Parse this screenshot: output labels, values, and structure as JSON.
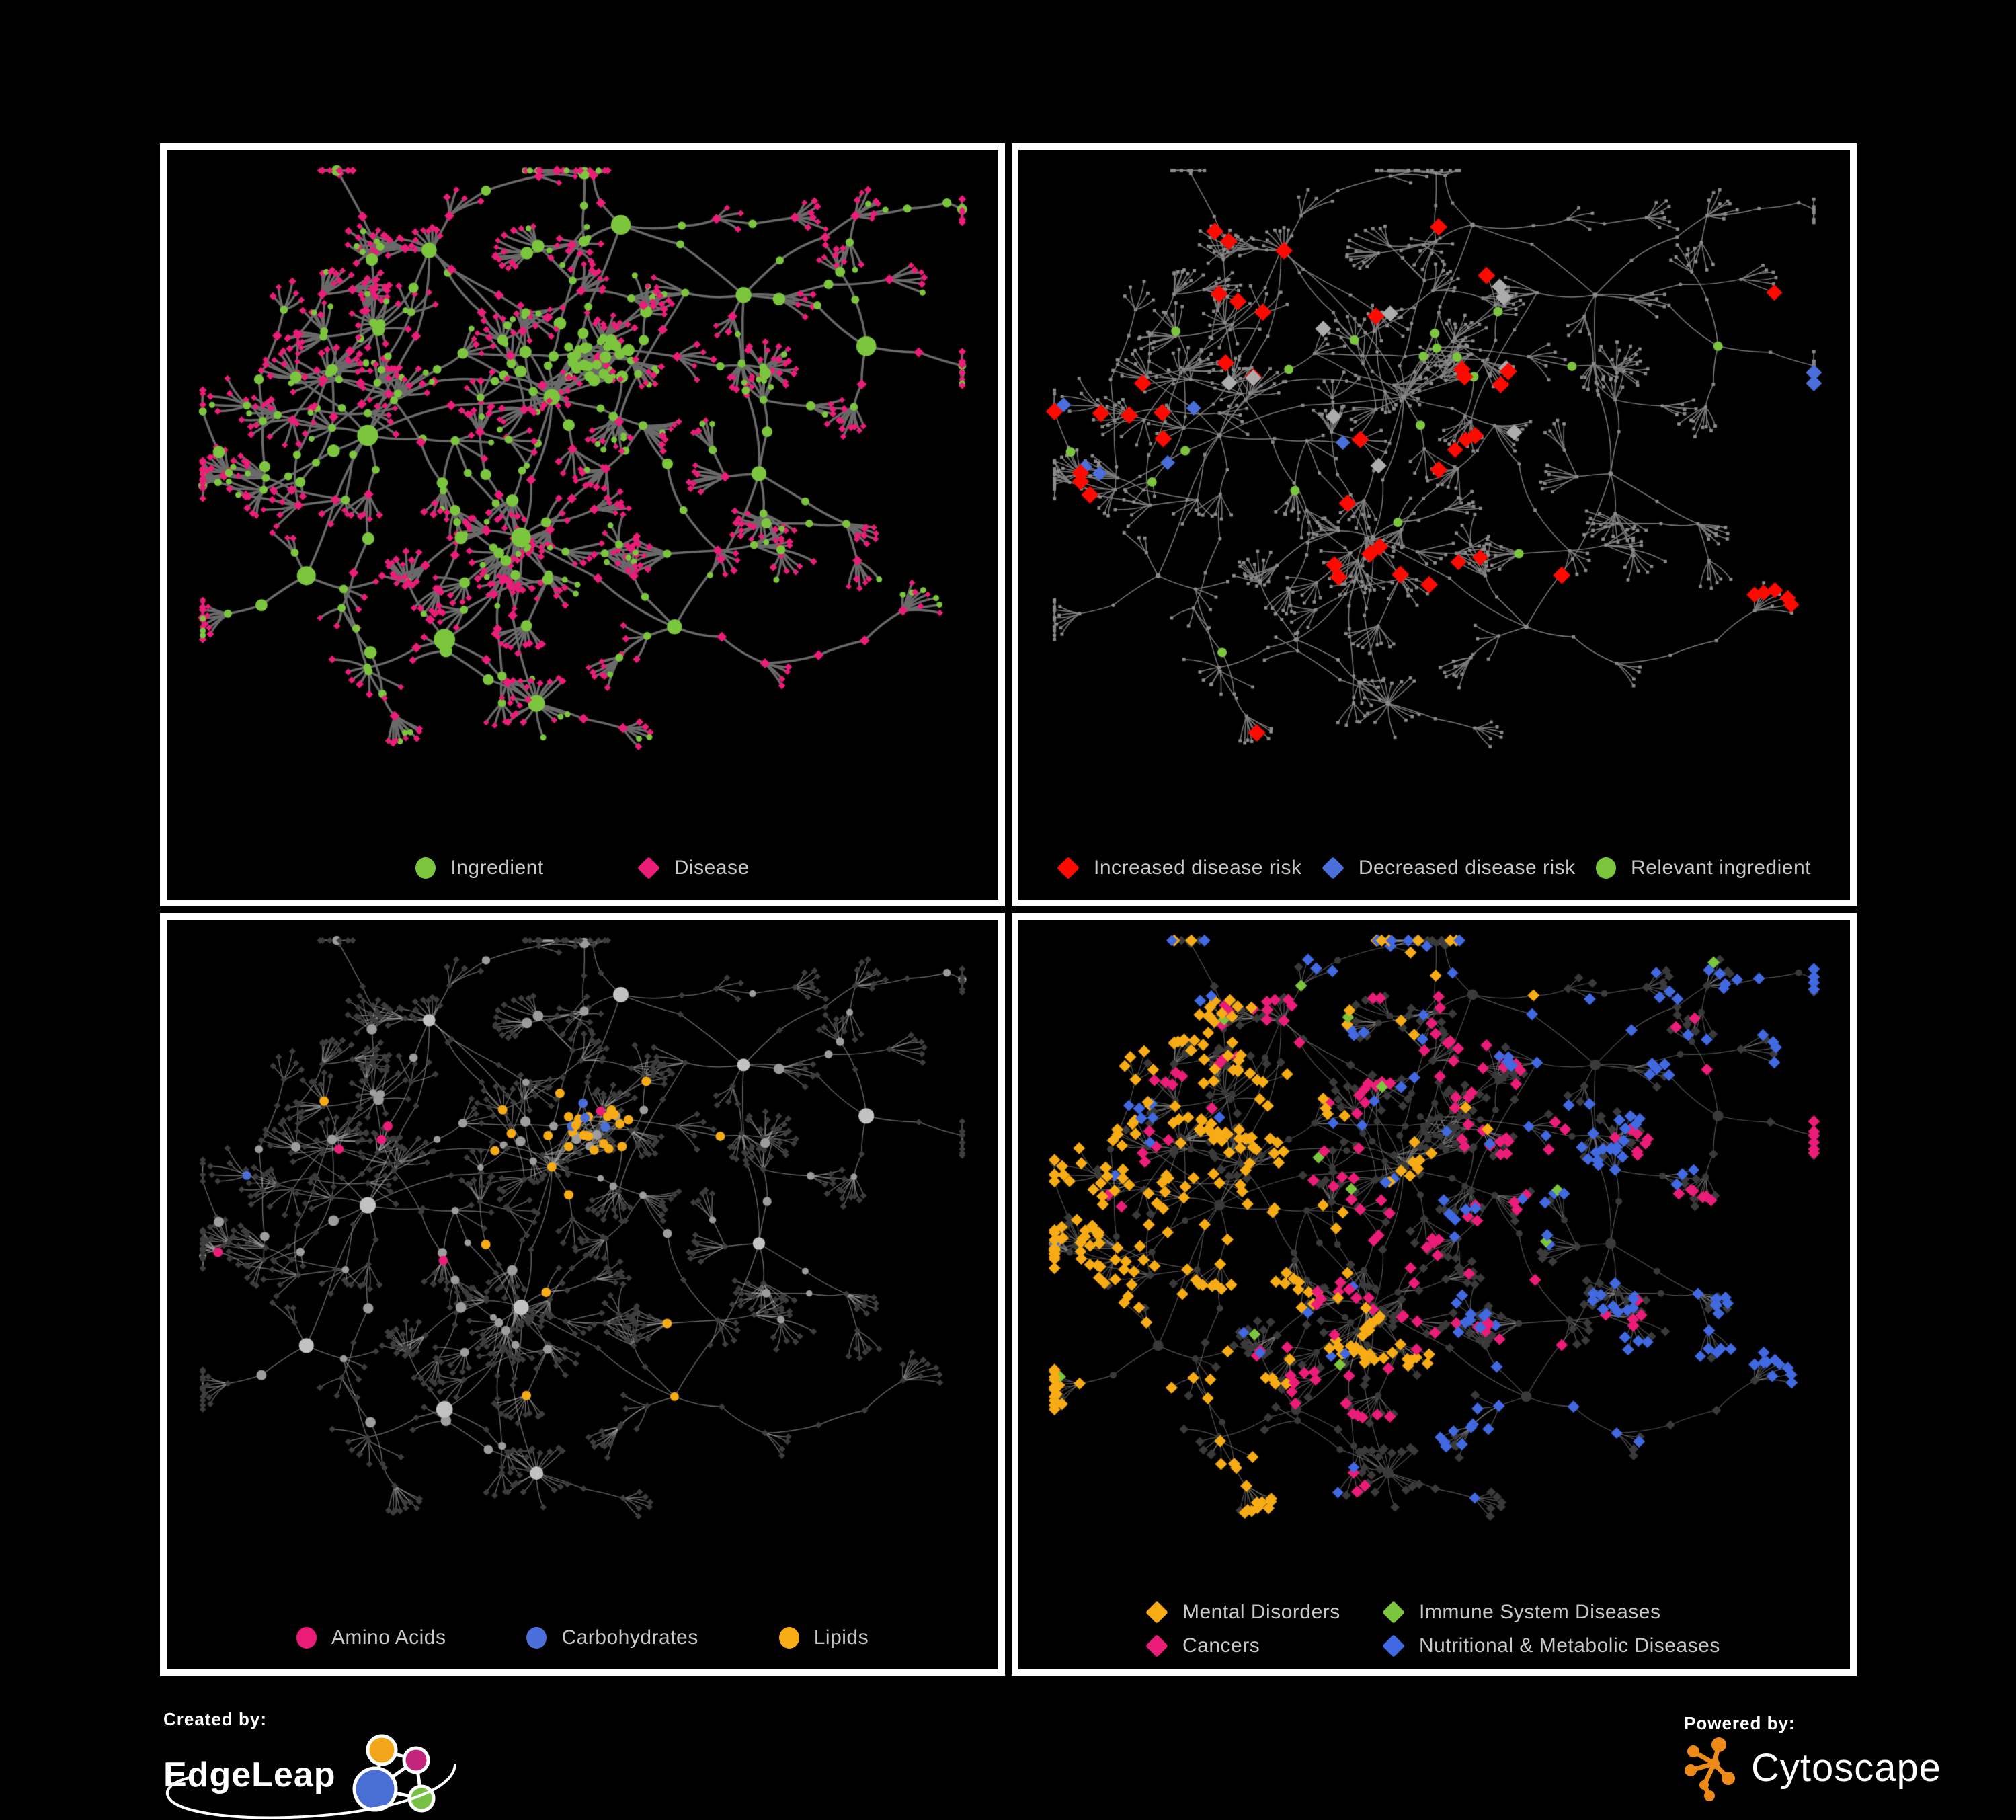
{
  "palette": {
    "green": "#7CC63E",
    "pink": "#EB1D78",
    "red": "#FF0A00",
    "blue": "#4A6FDB",
    "royal": "#4169E1",
    "orange": "#F7AC16",
    "silver": "#ACACAC",
    "gray_node": "#8B8B8B",
    "light_gray_node": "#9D9D9D",
    "dark_node": "#3A3A3A",
    "edge_gray": "#6A6A6A",
    "panel_border": "#FFFFFF",
    "background": "#000000",
    "legend_text": "#C9C9C9"
  },
  "panels": [
    {
      "name": "ingredient-disease",
      "legend": [
        {
          "label": "Ingredient",
          "shape": "circle",
          "color": "#7CC63E"
        },
        {
          "label": "Disease",
          "shape": "diamond",
          "color": "#EB1D78"
        }
      ]
    },
    {
      "name": "disease-risk",
      "legend": [
        {
          "label": "Increased disease risk",
          "shape": "diamond",
          "color": "#FF0A00"
        },
        {
          "label": "Decreased disease risk",
          "shape": "diamond",
          "color": "#4A6FDB"
        },
        {
          "label": "Relevant ingredient",
          "shape": "circle",
          "color": "#7CC63E"
        }
      ]
    },
    {
      "name": "nutrient-classes",
      "legend": [
        {
          "label": "Amino Acids",
          "shape": "circle",
          "color": "#EB1D78"
        },
        {
          "label": "Carbohydrates",
          "shape": "circle",
          "color": "#4A6FDB"
        },
        {
          "label": "Lipids",
          "shape": "circle",
          "color": "#F7AC16"
        }
      ]
    },
    {
      "name": "disease-classes",
      "legend": [
        {
          "label": "Mental Disorders",
          "shape": "diamond",
          "color": "#F7AC16"
        },
        {
          "label": "Immune System Diseases",
          "shape": "diamond",
          "color": "#7CC63E"
        },
        {
          "label": "Cancers",
          "shape": "diamond",
          "color": "#EB1D78"
        },
        {
          "label": "Nutritional & Metabolic Diseases",
          "shape": "diamond",
          "color": "#4169E1"
        }
      ]
    }
  ],
  "footer": {
    "created_by_label": "Created by:",
    "created_by_brand": "EdgeLeap",
    "powered_by_label": "Powered by:",
    "powered_by_brand": "Cytoscape"
  }
}
